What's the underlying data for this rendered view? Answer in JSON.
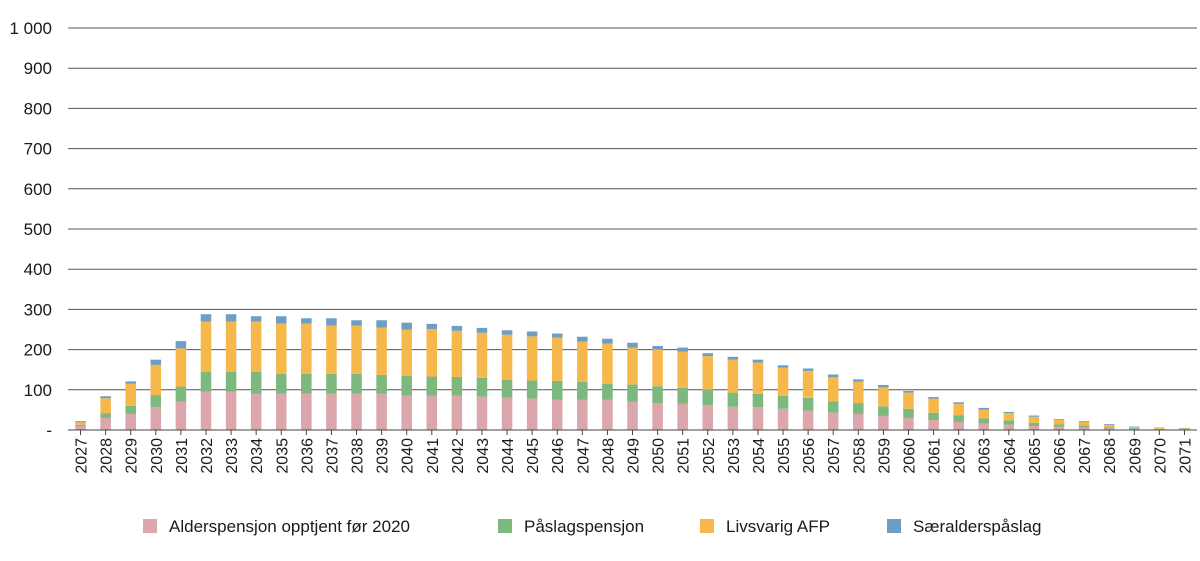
{
  "chart_data": {
    "type": "bar",
    "stacked": true,
    "title": "",
    "xlabel": "",
    "ylabel": "",
    "ylim": [
      0,
      1000
    ],
    "yticks": [
      "-",
      "100",
      "200",
      "300",
      "400",
      "500",
      "600",
      "700",
      "800",
      "900",
      "1 000"
    ],
    "ytick_values": [
      0,
      100,
      200,
      300,
      400,
      500,
      600,
      700,
      800,
      900,
      1000
    ],
    "grid": true,
    "legend": "bottom",
    "categories": [
      "2027",
      "2028",
      "2029",
      "2030",
      "2031",
      "2032",
      "2033",
      "2034",
      "2035",
      "2036",
      "2037",
      "2038",
      "2039",
      "2040",
      "2041",
      "2042",
      "2043",
      "2044",
      "2045",
      "2046",
      "2047",
      "2048",
      "2049",
      "2050",
      "2051",
      "2052",
      "2053",
      "2054",
      "2055",
      "2056",
      "2057",
      "2058",
      "2059",
      "2060",
      "2061",
      "2062",
      "2063",
      "2064",
      "2065",
      "2066",
      "2067",
      "2068",
      "2069",
      "2070",
      "2071"
    ],
    "series": [
      {
        "name": "Alderspensjon opptjent før 2020",
        "color": "#dba6ac",
        "values": [
          10,
          30,
          40,
          57,
          70,
          95,
          95,
          90,
          90,
          90,
          90,
          90,
          90,
          85,
          85,
          85,
          83,
          80,
          78,
          75,
          75,
          75,
          70,
          67,
          65,
          62,
          58,
          57,
          53,
          48,
          43,
          40,
          35,
          30,
          25,
          20,
          16,
          13,
          10,
          8,
          6,
          4,
          3,
          2,
          1
        ]
      },
      {
        "name": "Påslagspensjon",
        "color": "#7db87f",
        "values": [
          3,
          12,
          20,
          30,
          38,
          50,
          50,
          55,
          50,
          50,
          50,
          50,
          47,
          50,
          48,
          47,
          47,
          45,
          45,
          47,
          45,
          40,
          43,
          42,
          40,
          38,
          35,
          33,
          32,
          32,
          28,
          27,
          24,
          23,
          18,
          17,
          13,
          11,
          8,
          6,
          5,
          3,
          2,
          1,
          1
        ]
      },
      {
        "name": "Livsvarig AFP",
        "color": "#f7b84b",
        "values": [
          6,
          37,
          55,
          75,
          95,
          125,
          125,
          125,
          125,
          125,
          120,
          120,
          118,
          115,
          118,
          115,
          112,
          112,
          110,
          108,
          100,
          100,
          92,
          92,
          90,
          84,
          82,
          78,
          70,
          67,
          60,
          53,
          47,
          40,
          35,
          28,
          22,
          18,
          15,
          11,
          9,
          6,
          3,
          2,
          2
        ]
      },
      {
        "name": "Særalderspåslag",
        "color": "#6c9fc3",
        "values": [
          3,
          5,
          6,
          13,
          18,
          18,
          18,
          13,
          18,
          13,
          18,
          13,
          18,
          17,
          13,
          12,
          12,
          11,
          12,
          10,
          12,
          12,
          12,
          8,
          10,
          7,
          7,
          7,
          6,
          6,
          7,
          6,
          6,
          4,
          4,
          4,
          4,
          3,
          3,
          2,
          2,
          2,
          1,
          1,
          1
        ]
      }
    ]
  }
}
